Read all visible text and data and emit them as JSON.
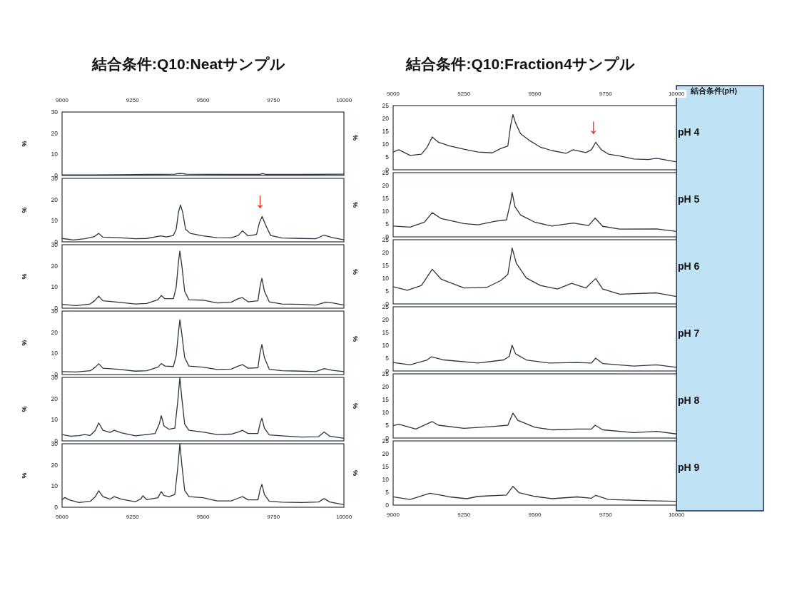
{
  "chart_data": [
    {
      "type": "line",
      "title": "結合条件:Q10:Neatサンプル",
      "ylabel": "%",
      "x2lim": [
        9000,
        10000
      ],
      "x2ticks": [
        9000,
        9250,
        9500,
        9750,
        10000
      ],
      "xlim": [
        9000,
        10000
      ],
      "ylim": [
        0,
        30
      ],
      "yticks": [
        0,
        10,
        20,
        30
      ],
      "tick_labels": "y",
      "series": [
        {
          "color": "#2b3440",
          "x": [
            9000,
            9100,
            9200,
            9300,
            9400,
            9415,
            9430,
            9440,
            9600,
            9700,
            9712,
            9725,
            9850,
            10000
          ],
          "values": [
            0.3,
            0.3,
            0.4,
            0.5,
            0.6,
            1.0,
            0.9,
            0.6,
            0.5,
            0.5,
            0.9,
            0.5,
            0.5,
            0.6
          ]
        }
      ]
    },
    {
      "type": "line",
      "ylabel": "%",
      "xlim": [
        9000,
        10000
      ],
      "ylim": [
        0,
        30
      ],
      "yticks": [
        0,
        10,
        20,
        30
      ],
      "tick_labels": "y",
      "annotations": [
        {
          "text": "↓",
          "x": 9710,
          "y": 12
        }
      ],
      "series": [
        {
          "color": "#2b3440",
          "x": [
            9000,
            9040,
            9080,
            9115,
            9130,
            9145,
            9200,
            9260,
            9300,
            9350,
            9370,
            9395,
            9405,
            9413,
            9420,
            9428,
            9438,
            9455,
            9500,
            9550,
            9600,
            9625,
            9640,
            9660,
            9690,
            9700,
            9710,
            9722,
            9740,
            9780,
            9850,
            9900,
            9930,
            9960,
            10000
          ],
          "values": [
            1.6,
            0.9,
            1.5,
            2.5,
            4.0,
            2.2,
            2.0,
            1.5,
            1.6,
            2.8,
            2.3,
            3.0,
            6,
            14,
            17.4,
            14,
            6,
            4,
            2.8,
            2.0,
            1.9,
            3.0,
            5.2,
            2.8,
            3.5,
            9,
            12,
            8,
            3,
            1.8,
            1.6,
            1.5,
            3.2,
            2.0,
            1.0
          ]
        }
      ]
    },
    {
      "type": "line",
      "ylabel": "%",
      "xlim": [
        9000,
        10000
      ],
      "ylim": [
        0,
        30
      ],
      "yticks": [
        0,
        10,
        20,
        30
      ],
      "tick_labels": "y",
      "series": [
        {
          "color": "#2b3440",
          "x": [
            9000,
            9050,
            9100,
            9115,
            9130,
            9145,
            9200,
            9260,
            9300,
            9340,
            9352,
            9365,
            9395,
            9405,
            9413,
            9418,
            9425,
            9435,
            9450,
            9500,
            9550,
            9600,
            9625,
            9640,
            9660,
            9695,
            9702,
            9709,
            9718,
            9735,
            9780,
            9850,
            9900,
            9935,
            9960,
            10000
          ],
          "values": [
            1.8,
            1.2,
            2,
            3.5,
            5.7,
            3.5,
            2.8,
            2,
            2.2,
            4,
            6,
            4.5,
            4.5,
            10,
            22,
            27,
            20,
            8,
            4,
            3.8,
            2.5,
            2.8,
            4.5,
            5,
            3,
            3.5,
            10,
            14.1,
            8,
            3,
            2,
            1.8,
            1.5,
            2.8,
            2.5,
            1.5
          ]
        }
      ]
    },
    {
      "type": "line",
      "ylabel": "%",
      "xlim": [
        9000,
        10000
      ],
      "ylim": [
        0,
        30
      ],
      "yticks": [
        0,
        10,
        20,
        30
      ],
      "tick_labels": "y",
      "series": [
        {
          "color": "#2b3440",
          "x": [
            9000,
            9050,
            9100,
            9118,
            9130,
            9145,
            9200,
            9260,
            9300,
            9340,
            9352,
            9365,
            9395,
            9405,
            9413,
            9418,
            9425,
            9435,
            9450,
            9500,
            9550,
            9600,
            9625,
            9640,
            9660,
            9695,
            9702,
            9709,
            9718,
            9735,
            9780,
            9850,
            9900,
            9930,
            9960,
            10000
          ],
          "values": [
            1.4,
            1.2,
            1.8,
            3.5,
            5.1,
            3.0,
            2.5,
            1.6,
            1.8,
            3.5,
            5.2,
            4.0,
            3.8,
            9,
            20,
            25.9,
            19,
            8,
            4,
            3.5,
            2.4,
            2.6,
            4,
            4.7,
            3,
            3.2,
            10,
            14.2,
            8,
            2.5,
            1.8,
            1.6,
            1.4,
            2.8,
            2.0,
            1.4
          ]
        }
      ]
    },
    {
      "type": "line",
      "ylabel": "%",
      "xlim": [
        9000,
        10000
      ],
      "ylim": [
        0,
        30
      ],
      "yticks": [
        0,
        10,
        20,
        30
      ],
      "tick_labels": "y",
      "series": [
        {
          "color": "#2b3440",
          "x": [
            9000,
            9030,
            9060,
            9080,
            9100,
            9118,
            9130,
            9145,
            9170,
            9185,
            9210,
            9260,
            9300,
            9330,
            9345,
            9352,
            9362,
            9380,
            9400,
            9410,
            9418,
            9425,
            9435,
            9450,
            9500,
            9550,
            9600,
            9625,
            9640,
            9660,
            9695,
            9702,
            9709,
            9718,
            9735,
            9780,
            9850,
            9910,
            9930,
            9950,
            10000
          ],
          "values": [
            3.0,
            2.2,
            2.5,
            3,
            2.6,
            5,
            8.5,
            5,
            4,
            5,
            3.8,
            2.4,
            3,
            3.5,
            8,
            11.9,
            7,
            5.5,
            6,
            18,
            30,
            20,
            8,
            5,
            4.2,
            3,
            3.2,
            4.2,
            5,
            3.5,
            3.5,
            8,
            10.7,
            6,
            2.8,
            2.4,
            1.8,
            2,
            4.2,
            2.2,
            1.2
          ]
        }
      ]
    },
    {
      "type": "line",
      "ylabel": "%",
      "xlim": [
        9000,
        10000
      ],
      "xticks": [
        9000,
        9250,
        9500,
        9750,
        10000
      ],
      "ylim": [
        0,
        30
      ],
      "yticks": [
        0,
        10,
        20,
        30
      ],
      "series": [
        {
          "color": "#2b3440",
          "x": [
            9000,
            9010,
            9025,
            9060,
            9100,
            9118,
            9130,
            9145,
            9170,
            9185,
            9210,
            9260,
            9280,
            9287,
            9300,
            9340,
            9352,
            9362,
            9380,
            9400,
            9410,
            9418,
            9425,
            9435,
            9450,
            9500,
            9550,
            9600,
            9625,
            9640,
            9660,
            9695,
            9702,
            9709,
            9718,
            9735,
            9780,
            9850,
            9910,
            9930,
            9950,
            10000
          ],
          "values": [
            3.5,
            4.6,
            3.5,
            2.2,
            2.8,
            5,
            7.8,
            5,
            3.8,
            5,
            3.8,
            2.6,
            4,
            5.4,
            3.6,
            4.5,
            7.4,
            5.5,
            5,
            6,
            18,
            30,
            20,
            8,
            5,
            4.5,
            3,
            3,
            4.3,
            5,
            3.5,
            3.5,
            8,
            10.8,
            6,
            2.8,
            2.4,
            2.2,
            2.5,
            4.1,
            2.5,
            1.2
          ]
        }
      ]
    },
    {
      "type": "line",
      "title": "結合条件:Q10:Fraction4サンプル",
      "ylabel": "%",
      "x2lim": [
        9000,
        10000
      ],
      "x2ticks": [
        9000,
        9250,
        9500,
        9750,
        10000
      ],
      "xlim": [
        9000,
        10000
      ],
      "ylim": [
        0,
        25
      ],
      "yticks": [
        0,
        5,
        10,
        15,
        20,
        25
      ],
      "tick_labels": "y",
      "annotations": [
        "結合条件(pH)",
        "pH 4",
        {
          "text": "↓",
          "x": 9715,
          "y": 10.7
        }
      ],
      "series": [
        {
          "color": "#2b3440",
          "x": [
            9000,
            9020,
            9060,
            9100,
            9120,
            9138,
            9160,
            9200,
            9250,
            9300,
            9350,
            9380,
            9405,
            9415,
            9423,
            9432,
            9450,
            9480,
            9520,
            9560,
            9610,
            9636,
            9680,
            9700,
            9715,
            9735,
            9760,
            9800,
            9850,
            9900,
            9930,
            10000
          ],
          "values": [
            6.9,
            7.8,
            5.6,
            6.1,
            8.8,
            12.8,
            10.7,
            9.3,
            8.0,
            6.9,
            6.6,
            8.3,
            9.3,
            17.4,
            21.5,
            18.3,
            14,
            11.5,
            8.8,
            7.5,
            6.4,
            7.8,
            6.7,
            7.8,
            10.7,
            7.8,
            6.1,
            5.4,
            4.2,
            4,
            4.5,
            3.1
          ]
        }
      ]
    },
    {
      "type": "line",
      "ylabel": "%",
      "xlim": [
        9000,
        10000
      ],
      "ylim": [
        0,
        25
      ],
      "yticks": [
        0,
        5,
        10,
        15,
        20,
        25
      ],
      "tick_labels": "y",
      "annotations": [
        "pH 5"
      ],
      "series": [
        {
          "color": "#2b3440",
          "x": [
            9000,
            9060,
            9110,
            9138,
            9170,
            9250,
            9300,
            9360,
            9400,
            9415,
            9420,
            9430,
            9450,
            9500,
            9560,
            9636,
            9690,
            9713,
            9740,
            9800,
            9930,
            10000
          ],
          "values": [
            4.2,
            3.8,
            5.7,
            9.4,
            7.1,
            5.2,
            4.7,
            6.1,
            6.6,
            13.7,
            17.3,
            11.8,
            8.5,
            5.7,
            4.2,
            5.4,
            4.4,
            7.3,
            4.1,
            3.0,
            3.1,
            2.1
          ]
        }
      ]
    },
    {
      "type": "line",
      "ylabel": "%",
      "xlim": [
        9000,
        10000
      ],
      "ylim": [
        0,
        25
      ],
      "yticks": [
        0,
        5,
        10,
        15,
        20,
        25
      ],
      "tick_labels": "y",
      "annotations": [
        "pH 6"
      ],
      "series": [
        {
          "color": "#2b3440",
          "x": [
            9000,
            9050,
            9100,
            9138,
            9170,
            9250,
            9330,
            9380,
            9405,
            9420,
            9435,
            9470,
            9520,
            9580,
            9630,
            9680,
            9715,
            9740,
            9800,
            9930,
            10000
          ],
          "values": [
            6.7,
            5.3,
            7.2,
            13.5,
            9.6,
            6.2,
            6.4,
            9.1,
            11.5,
            21.8,
            15.8,
            10.1,
            7.2,
            5.8,
            8.0,
            6.2,
            9.9,
            5.8,
            3.8,
            4.3,
            2.9
          ]
        }
      ]
    },
    {
      "type": "line",
      "ylabel": "%",
      "xlim": [
        9000,
        10000
      ],
      "ylim": [
        0,
        25
      ],
      "yticks": [
        0,
        5,
        10,
        15,
        20,
        25
      ],
      "tick_labels": "y",
      "annotations": [
        "pH 7"
      ],
      "series": [
        {
          "color": "#2b3440",
          "x": [
            9000,
            9060,
            9120,
            9135,
            9180,
            9300,
            9390,
            9410,
            9420,
            9432,
            9470,
            9550,
            9650,
            9700,
            9715,
            9740,
            9850,
            9930,
            10000
          ],
          "values": [
            3.3,
            2.4,
            4.3,
            5.5,
            4.3,
            3.1,
            4.3,
            5.7,
            10.0,
            6.7,
            4.3,
            3.1,
            3.3,
            3.1,
            5.0,
            2.9,
            1.9,
            2.4,
            1.4
          ]
        }
      ]
    },
    {
      "type": "line",
      "ylabel": "%",
      "xlim": [
        9000,
        10000
      ],
      "ylim": [
        0,
        25
      ],
      "yticks": [
        0,
        5,
        10,
        15,
        20,
        25
      ],
      "tick_labels": "y",
      "annotations": [
        "pH 8"
      ],
      "series": [
        {
          "color": "#2b3440",
          "x": [
            9000,
            9020,
            9080,
            9138,
            9160,
            9250,
            9350,
            9405,
            9423,
            9440,
            9500,
            9560,
            9650,
            9700,
            9713,
            9740,
            9850,
            9930,
            10000
          ],
          "values": [
            4.8,
            5.4,
            3.5,
            6.4,
            5,
            3.8,
            4.5,
            5,
            9.7,
            6.9,
            4.2,
            3.2,
            3.5,
            3.5,
            5,
            3.2,
            2.1,
            2.6,
            1.6
          ]
        }
      ]
    },
    {
      "type": "line",
      "ylabel": "%",
      "xlim": [
        9000,
        10000
      ],
      "xticks": [
        9000,
        9250,
        9500,
        9750,
        10000
      ],
      "ylim": [
        0,
        25
      ],
      "yticks": [
        0,
        5,
        10,
        15,
        20,
        25
      ],
      "annotations": [
        "pH 9"
      ],
      "series": [
        {
          "color": "#2b3440",
          "x": [
            9000,
            9060,
            9130,
            9200,
            9260,
            9300,
            9400,
            9423,
            9445,
            9500,
            9560,
            9650,
            9700,
            9715,
            9760,
            9900,
            10000
          ],
          "values": [
            3.2,
            2.2,
            4.6,
            3.2,
            2.5,
            3.4,
            3.9,
            7.3,
            4.8,
            3.4,
            2.5,
            3.2,
            2.7,
            3.8,
            2.2,
            1.7,
            1.5
          ]
        }
      ]
    }
  ]
}
